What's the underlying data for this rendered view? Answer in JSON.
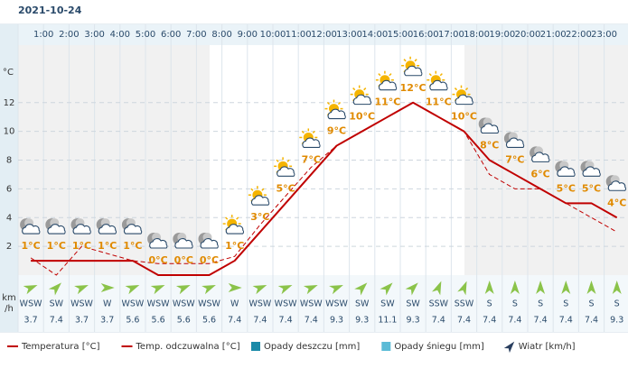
{
  "date": "2021-10-24",
  "chart_data": {
    "type": "line",
    "categories": [
      null,
      "1:00",
      "2:00",
      "3:00",
      "4:00",
      "5:00",
      "6:00",
      "7:00",
      "8:00",
      "9:00",
      "10:00",
      "11:00",
      "12:00",
      "13:00",
      "14:00",
      "15:00",
      "16:00",
      "17:00",
      "18:00",
      "19:00",
      "20:00",
      "21:00",
      "22:00",
      "23:00"
    ],
    "ylabel": "°C",
    "ylim": [
      0,
      16
    ],
    "yticks": [
      2,
      4,
      6,
      8,
      10,
      12
    ],
    "grid": true,
    "series": [
      {
        "name": "Temperatura [°C]",
        "color": "#c00000",
        "style": "solid",
        "values": [
          1,
          1,
          1,
          1,
          1,
          0,
          0,
          0,
          1,
          3,
          5,
          7,
          9,
          10,
          11,
          12,
          11,
          10,
          8,
          7,
          6,
          5,
          5,
          4
        ],
        "value_labels": [
          "1°C",
          "1°C",
          "1°C",
          "1°C",
          "1°C",
          "0°C",
          "0°C",
          "0°C",
          "1°C",
          "3°C",
          "5°C",
          "7°C",
          "9°C",
          "10°C",
          "11°C",
          "12°C",
          "11°C",
          "10°C",
          "8°C",
          "7°C",
          "6°C",
          "5°C",
          "5°C",
          "4°C"
        ]
      },
      {
        "name": "Temp. odczuwalna [°C]",
        "color": "#c00000",
        "style": "dashed",
        "values": [
          1.2,
          0,
          2,
          1.5,
          1,
          0.8,
          0.8,
          0.8,
          1.3,
          3.5,
          5.5,
          7.5,
          9,
          10,
          11,
          12,
          11,
          10,
          7,
          6,
          6,
          5,
          4,
          3
        ]
      }
    ],
    "extra_legend": [
      {
        "name": "Opady deszczu [mm]",
        "color": "#1a8aa8"
      },
      {
        "name": "Opady śniegu [mm]",
        "color": "#5bbbd6"
      }
    ],
    "wind": {
      "unit": [
        "km",
        "/h"
      ],
      "legend": "Wiatr [km/h]",
      "color": "#8bc34a",
      "directions": [
        "WSW",
        "SW",
        "WSW",
        "W",
        "WSW",
        "WSW",
        "WSW",
        "WSW",
        "W",
        "WSW",
        "WSW",
        "WSW",
        "WSW",
        "SW",
        "SW",
        "SW",
        "SSW",
        "SSW",
        "S",
        "S",
        "S",
        "S",
        "S",
        "S"
      ],
      "speeds": [
        3.7,
        7.4,
        3.7,
        3.7,
        5.6,
        5.6,
        5.6,
        5.6,
        7.4,
        7.4,
        7.4,
        7.4,
        9.3,
        9.3,
        11.1,
        9.3,
        7.4,
        7.4,
        7.4,
        7.4,
        7.4,
        7.4,
        7.4,
        9.3
      ]
    }
  }
}
